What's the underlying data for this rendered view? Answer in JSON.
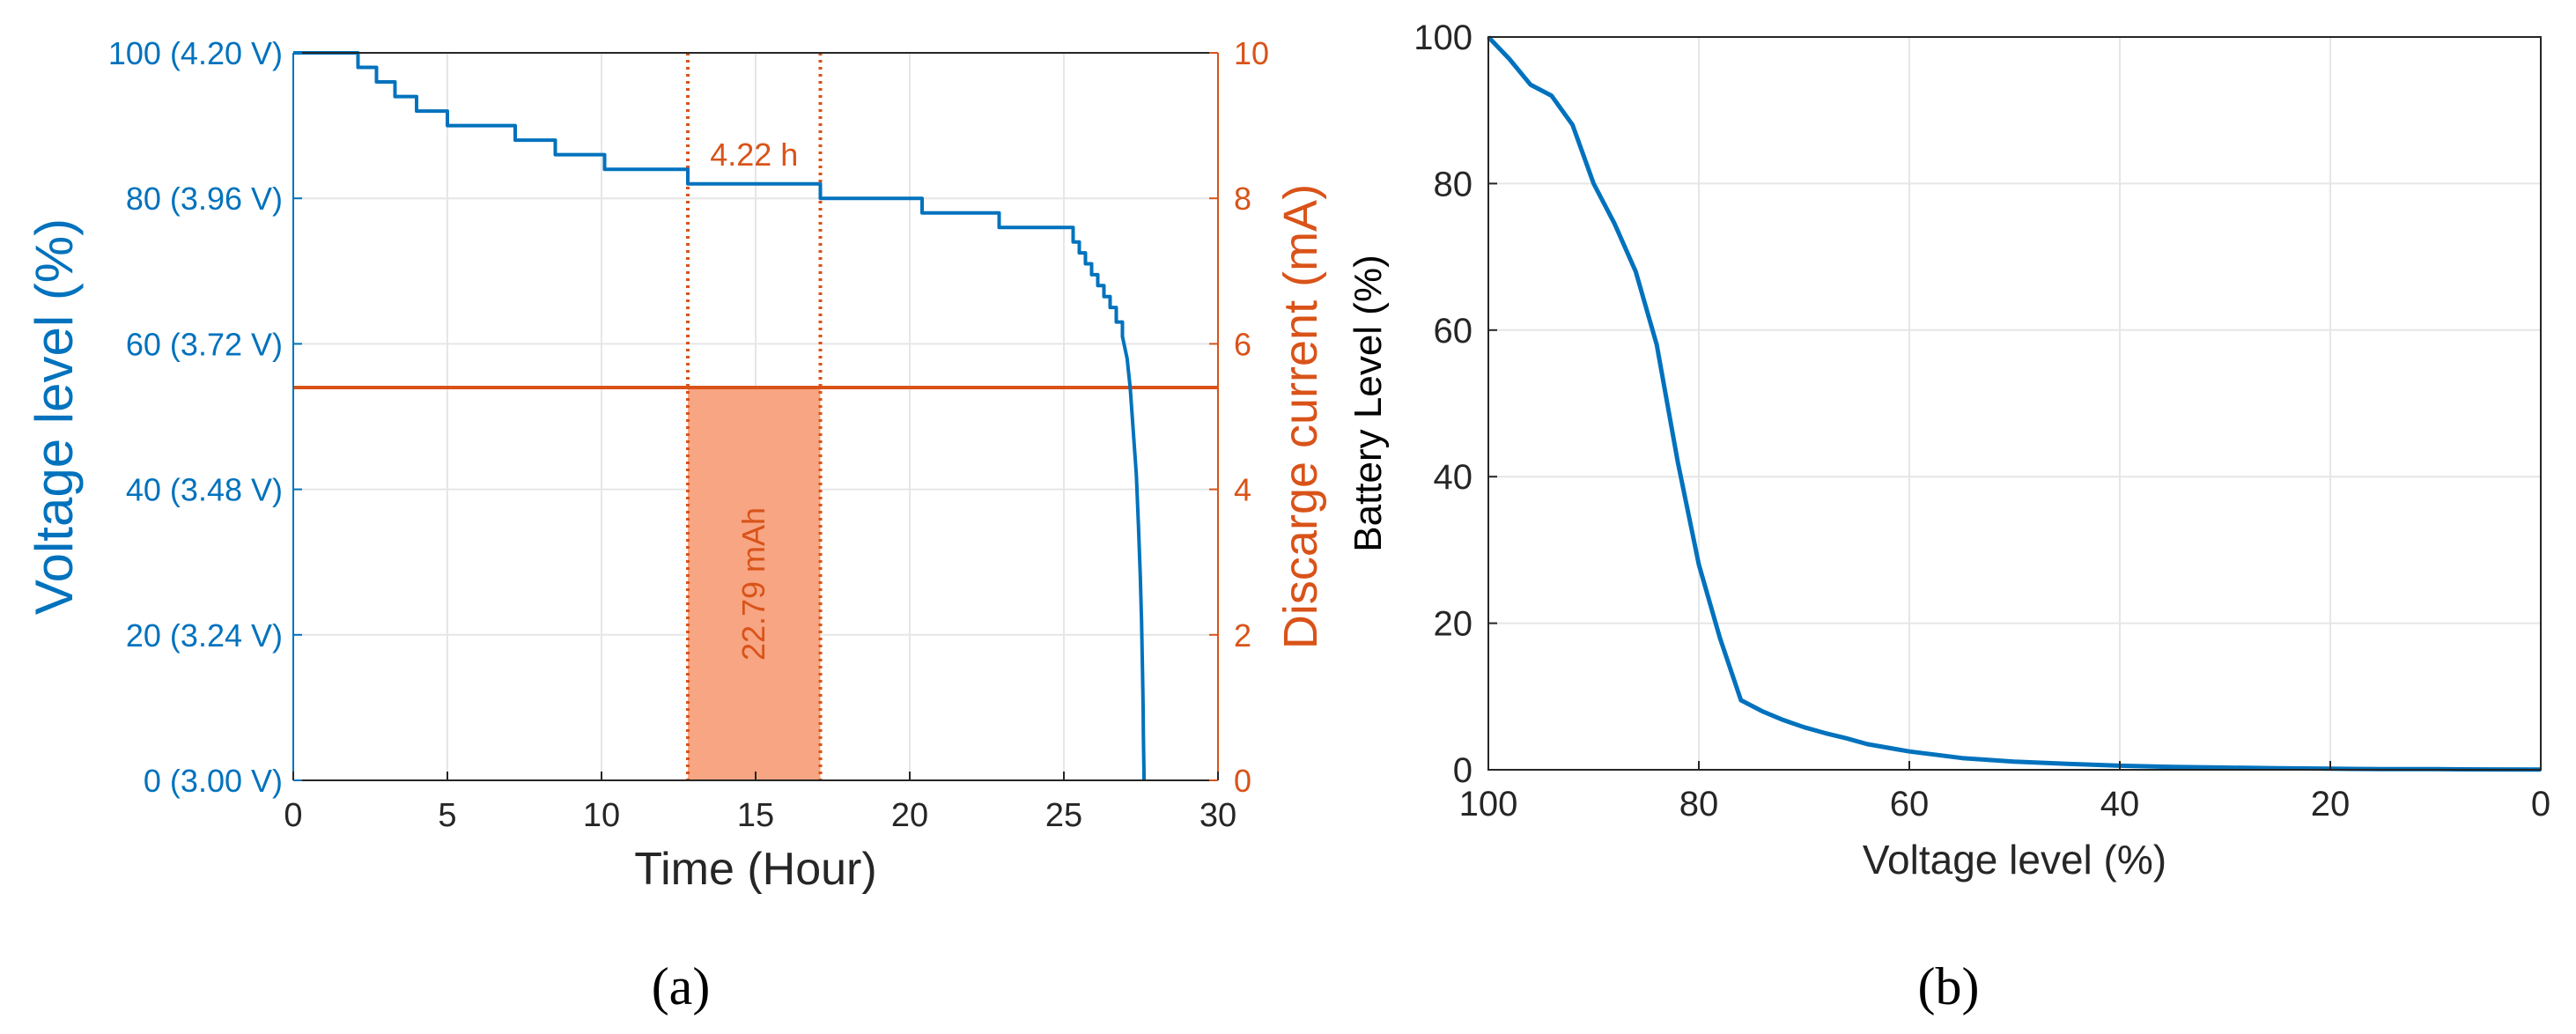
{
  "colors": {
    "voltage": "#0072BD",
    "current": "#D95319",
    "fill": "#F7A582",
    "bBattery": "#0072BD",
    "axis": "#262626",
    "grid": "#E6E6E6"
  },
  "chart_data": [
    {
      "id": "a",
      "panel_label": "(a)",
      "type": "line",
      "xlabel": "Time (Hour)",
      "ylabel_left": "Voltage level (%)",
      "ylabel_right": "Discarge current (mA)",
      "xlim": [
        0,
        30
      ],
      "ylim_left": [
        0,
        100
      ],
      "ylim_right": [
        0,
        10
      ],
      "grid": true,
      "x_ticks": [
        "0",
        "5",
        "10",
        "15",
        "20",
        "25",
        "30"
      ],
      "y_left_ticks": [
        "0 (3.00 V)",
        "20 (3.24 V)",
        "40 (3.48 V)",
        "60 (3.72 V)",
        "80 (3.96 V)",
        "100 (4.20 V)"
      ],
      "y_right_ticks": [
        "0",
        "2",
        "4",
        "6",
        "8",
        "10"
      ],
      "voltage_series": {
        "x": [
          0,
          2.1,
          2.1,
          2.7,
          2.7,
          3.3,
          3.3,
          4.0,
          4.0,
          5.0,
          5.0,
          7.2,
          7.2,
          8.5,
          8.5,
          10.1,
          10.1,
          12.8,
          12.8,
          17.1,
          17.1,
          20.4,
          20.4,
          22.9,
          22.9,
          25.3,
          25.3,
          25.5,
          25.5,
          25.7,
          25.7,
          25.9,
          25.9,
          26.1,
          26.1,
          26.3,
          26.3,
          26.5,
          26.5,
          26.7,
          26.7,
          26.9,
          26.9,
          27.05,
          27.15,
          27.25,
          27.35,
          27.42,
          27.48,
          27.52,
          27.55,
          27.57,
          27.58,
          27.59,
          27.6,
          27.6
        ],
        "y": [
          100,
          100,
          98,
          98,
          96,
          96,
          94,
          94,
          92,
          92,
          90,
          90,
          88,
          88,
          86,
          86,
          84,
          84,
          82,
          82,
          80,
          80,
          78,
          78,
          76,
          76,
          74,
          74,
          72.5,
          72.5,
          71,
          71,
          69.5,
          69.5,
          68,
          68,
          66.5,
          66.5,
          65,
          65,
          63,
          63,
          61,
          58,
          54,
          48,
          42,
          35,
          28,
          22,
          15,
          10,
          6,
          3,
          1,
          0
        ]
      },
      "current_series": {
        "name": "",
        "x": [
          0,
          30
        ],
        "y": [
          5.4,
          5.4
        ]
      },
      "annotations": [
        {
          "text": "4.22 h",
          "x_start": 12.8,
          "x_end": 17.1
        },
        {
          "text": "22.79 mAh",
          "x_start": 12.8,
          "x_end": 17.1,
          "y_top": 5.4
        }
      ]
    },
    {
      "id": "b",
      "panel_label": "(b)",
      "type": "line",
      "xlabel": "Voltage level (%)",
      "ylabel": "Battery Level (%)",
      "xlim": [
        100,
        0
      ],
      "ylim": [
        0,
        100
      ],
      "x_reversed": true,
      "grid": true,
      "x_ticks": [
        "100",
        "80",
        "60",
        "40",
        "20",
        "0"
      ],
      "y_ticks": [
        "0",
        "20",
        "40",
        "60",
        "80",
        "100"
      ],
      "series": [
        {
          "x": [
            100,
            98,
            96,
            94,
            92,
            90,
            88,
            86,
            84,
            82,
            80,
            78,
            76,
            74,
            72,
            70,
            68,
            66,
            64,
            60,
            55,
            50,
            45,
            40,
            35,
            30,
            25,
            20,
            15,
            10,
            5,
            0
          ],
          "y": [
            100,
            97,
            93.5,
            92,
            88,
            80,
            74.5,
            68,
            58,
            42,
            28,
            18,
            9.5,
            8,
            6.8,
            5.8,
            5.0,
            4.3,
            3.5,
            2.5,
            1.6,
            1.1,
            0.8,
            0.55,
            0.4,
            0.3,
            0.2,
            0.15,
            0.1,
            0.08,
            0.05,
            0.03
          ]
        }
      ]
    }
  ]
}
